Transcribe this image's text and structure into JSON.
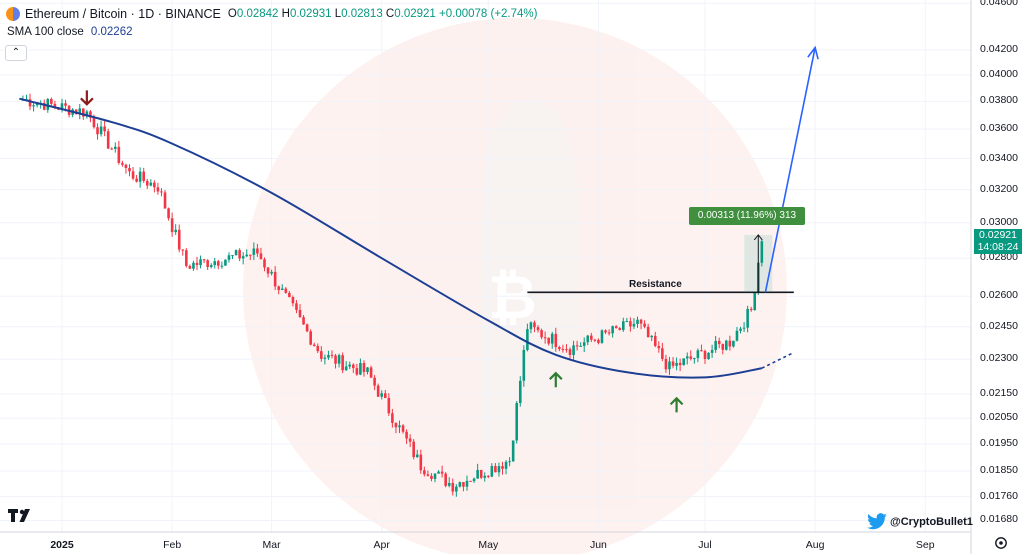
{
  "header": {
    "symbol": "Ethereum / Bitcoin · 1D · BINANCE",
    "o_key": "O",
    "o_val": "0.02842",
    "h_key": "H",
    "h_val": "0.02931",
    "l_key": "L",
    "l_val": "0.02813",
    "c_key": "C",
    "c_val": "0.02921",
    "change": "+0.00078 (+2.74%)"
  },
  "indicator": {
    "label": "SMA 100 close",
    "value": "0.02262"
  },
  "collapse_glyph": "⌃",
  "price_tag": {
    "price": "0.02921",
    "countdown": "14:08:24"
  },
  "measure_label": "0.00313 (11.96%) 313",
  "resistance_label": "Resistance",
  "credit": "@CryptoBullet1",
  "colors": {
    "up": "#089981",
    "down": "#f23645",
    "sma": "#1c3f94",
    "projection": "#2962ff",
    "annotation_up": "#2e7d32",
    "annotation_down": "#8b1e1e"
  },
  "chart_data": {
    "type": "candlestick",
    "symbol": "ETH/BTC",
    "timeframe": "1D",
    "y_axis": {
      "ticks": [
        "0.04600",
        "0.04200",
        "0.04000",
        "0.03800",
        "0.03600",
        "0.03400",
        "0.03200",
        "0.03000",
        "0.02800",
        "0.02600",
        "0.02450",
        "0.02300",
        "0.02150",
        "0.02050",
        "0.01950",
        "0.01850",
        "0.01760",
        "0.01680"
      ],
      "scale": "log",
      "range": [
        0.0165,
        0.0462
      ]
    },
    "x_axis": {
      "ticks": [
        "2025",
        "Feb",
        "Mar",
        "Apr",
        "May",
        "Jun",
        "Jul",
        "Aug",
        "Sep"
      ]
    },
    "price_segments": [
      {
        "from": "2024-12-20",
        "to": "2025-01-08",
        "start": 0.0382,
        "end": 0.0372
      },
      {
        "from": "2025-01-08",
        "to": "2025-01-20",
        "start": 0.0372,
        "end": 0.033
      },
      {
        "from": "2025-01-20",
        "to": "2025-01-28",
        "start": 0.033,
        "end": 0.0322
      },
      {
        "from": "2025-01-28",
        "to": "2025-02-05",
        "start": 0.0322,
        "end": 0.0276
      },
      {
        "from": "2025-02-05",
        "to": "2025-02-25",
        "start": 0.0276,
        "end": 0.0283
      },
      {
        "from": "2025-02-25",
        "to": "2025-03-15",
        "start": 0.0283,
        "end": 0.0232
      },
      {
        "from": "2025-03-15",
        "to": "2025-03-28",
        "start": 0.0232,
        "end": 0.0224
      },
      {
        "from": "2025-03-28",
        "to": "2025-04-12",
        "start": 0.0224,
        "end": 0.0187
      },
      {
        "from": "2025-04-12",
        "to": "2025-04-21",
        "start": 0.0187,
        "end": 0.018
      },
      {
        "from": "2025-04-21",
        "to": "2025-05-07",
        "start": 0.018,
        "end": 0.0189
      },
      {
        "from": "2025-05-07",
        "to": "2025-05-12",
        "start": 0.0189,
        "end": 0.0245
      },
      {
        "from": "2025-05-12",
        "to": "2025-05-24",
        "start": 0.0245,
        "end": 0.0235
      },
      {
        "from": "2025-05-24",
        "to": "2025-06-12",
        "start": 0.0235,
        "end": 0.0247
      },
      {
        "from": "2025-06-12",
        "to": "2025-06-21",
        "start": 0.0247,
        "end": 0.0226
      },
      {
        "from": "2025-06-21",
        "to": "2025-07-08",
        "start": 0.0226,
        "end": 0.0238
      },
      {
        "from": "2025-07-08",
        "to": "2025-07-14",
        "start": 0.0238,
        "end": 0.0253
      },
      {
        "from": "2025-07-14",
        "to": "2025-07-17",
        "start": 0.0253,
        "end": 0.0292
      }
    ],
    "sma100": [
      {
        "date": "2024-12-20",
        "value": 0.0382
      },
      {
        "date": "2025-01-15",
        "value": 0.0365
      },
      {
        "date": "2025-02-01",
        "value": 0.035
      },
      {
        "date": "2025-03-01",
        "value": 0.0318
      },
      {
        "date": "2025-04-01",
        "value": 0.028
      },
      {
        "date": "2025-05-01",
        "value": 0.0248
      },
      {
        "date": "2025-05-20",
        "value": 0.0232
      },
      {
        "date": "2025-06-10",
        "value": 0.0224
      },
      {
        "date": "2025-07-01",
        "value": 0.0222
      },
      {
        "date": "2025-07-17",
        "value": 0.0226
      }
    ],
    "sma100_projection": [
      {
        "date": "2025-07-17",
        "value": 0.0226
      },
      {
        "date": "2025-07-26",
        "value": 0.0233
      }
    ],
    "resistance": {
      "value": 0.0262,
      "from": "2025-05-12",
      "to": "2025-07-26"
    },
    "projection_arrow": [
      {
        "date": "2025-07-18",
        "value": 0.0262
      },
      {
        "date": "2025-08-01",
        "value": 0.0422
      }
    ],
    "measure": {
      "from_value": 0.0262,
      "to_value": 0.0293,
      "date": "2025-07-16",
      "label": "0.00313 (11.96%) 313"
    },
    "markers": [
      {
        "type": "arrow-down",
        "date": "2025-01-08",
        "value": 0.0372
      },
      {
        "type": "arrow-up",
        "date": "2025-05-20",
        "value": 0.023
      },
      {
        "type": "arrow-up",
        "date": "2025-06-23",
        "value": 0.0219
      }
    ],
    "last": {
      "close": 0.02921,
      "countdown": "14:08:24"
    }
  }
}
